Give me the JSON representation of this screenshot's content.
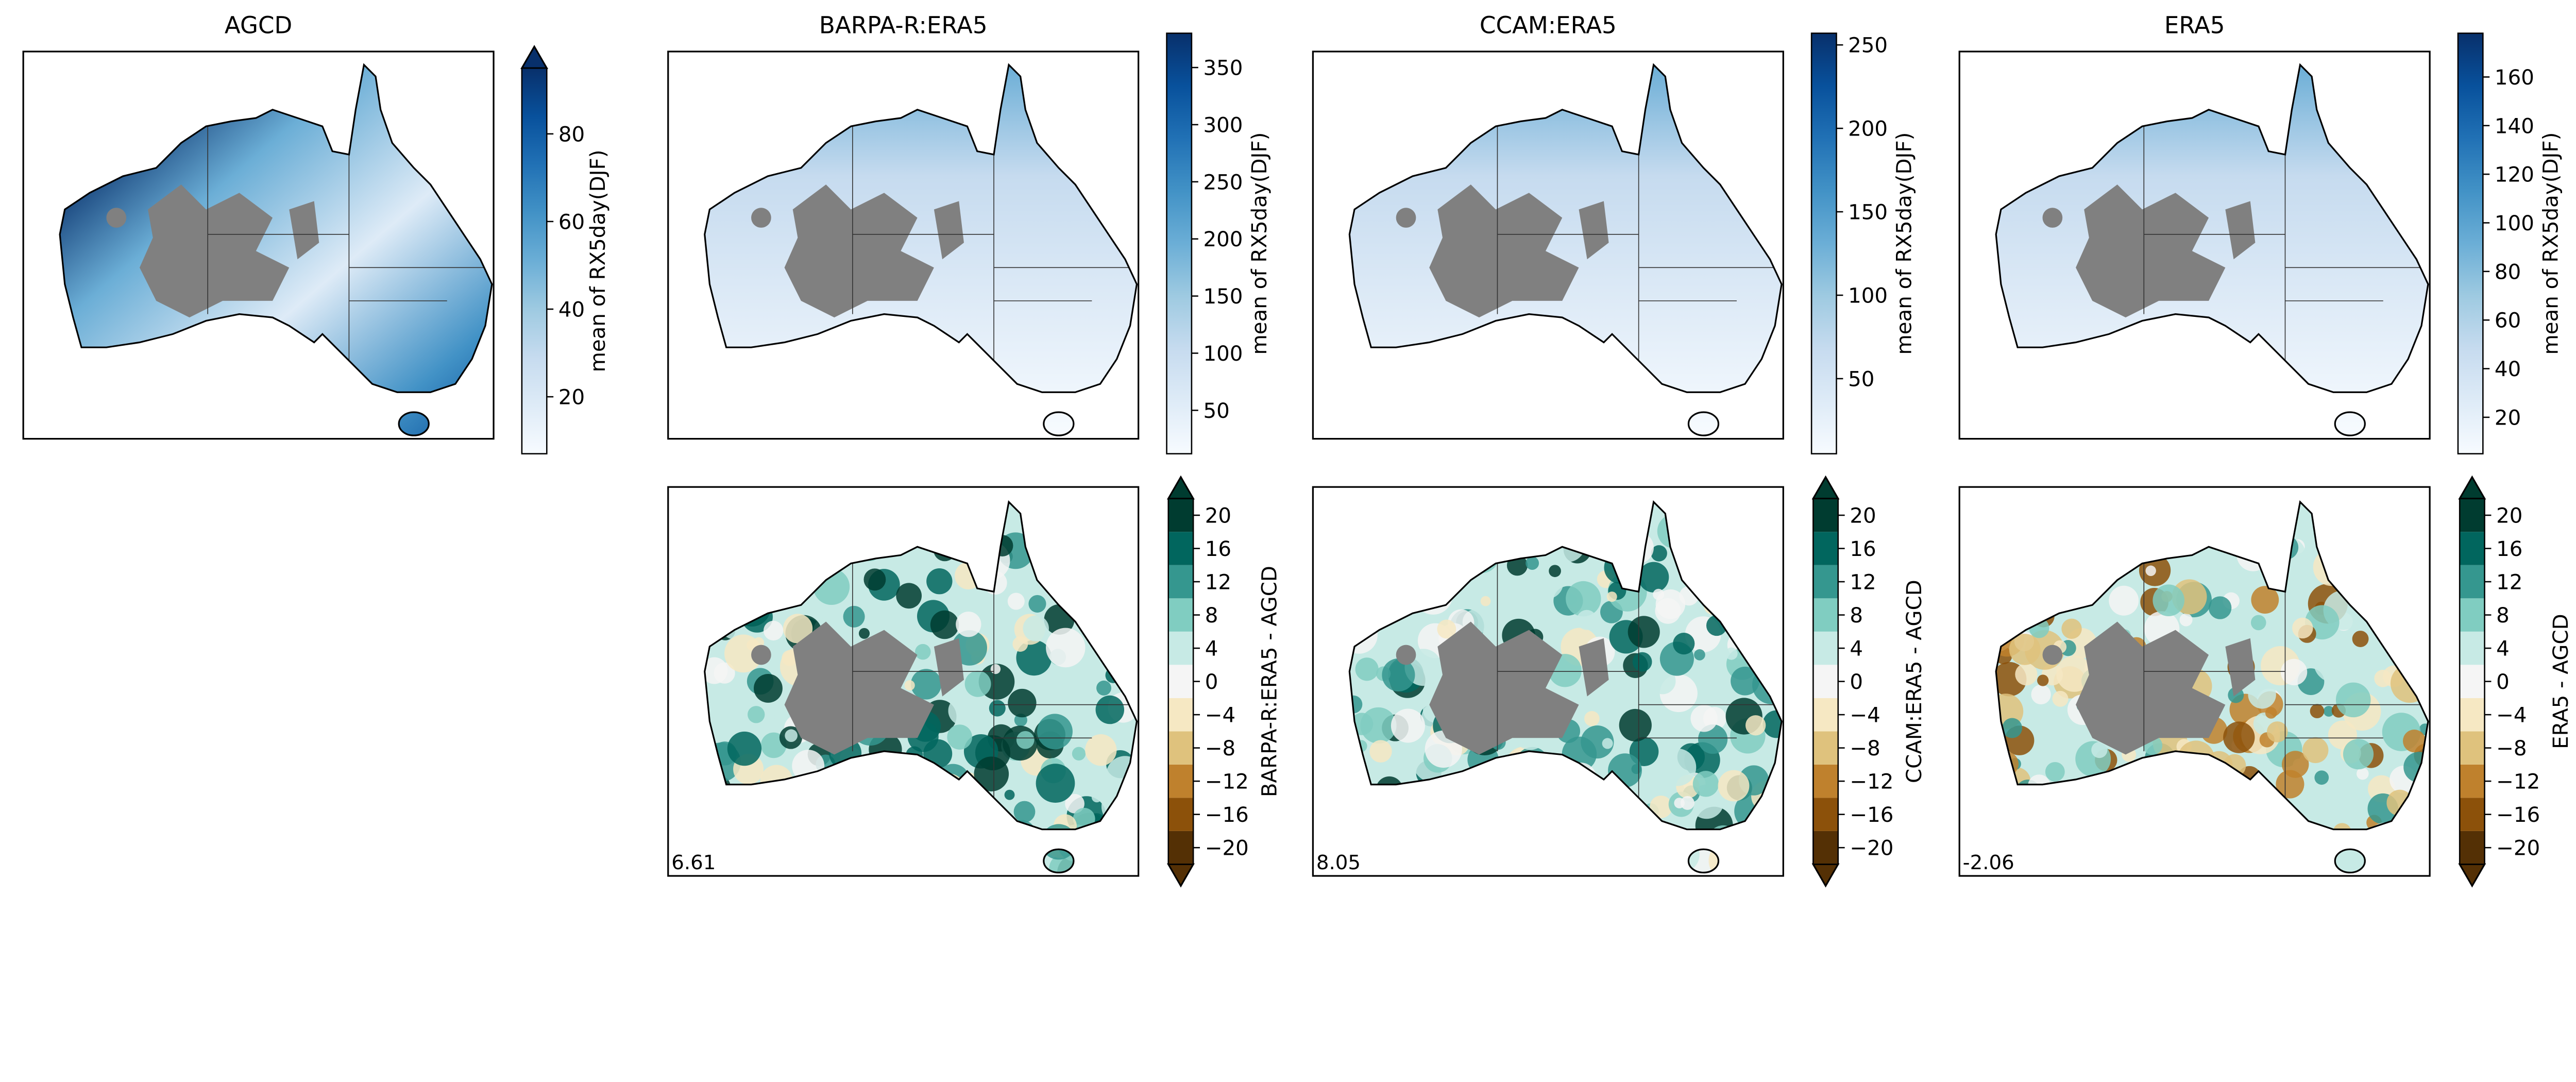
{
  "chart_data": [
    {
      "type": "heatmap",
      "title": "AGCD",
      "colormap": "Blues",
      "cbar_label": "mean of RX5day(DJF)",
      "range": [
        7,
        95
      ],
      "ticks": [
        20,
        40,
        60,
        80
      ],
      "extend": "max",
      "row": 1,
      "col": 1
    },
    {
      "type": "heatmap",
      "title": "BARPA-R:ERA5",
      "colormap": "Blues",
      "cbar_label": "mean of RX5day(DJF)",
      "range": [
        12,
        380
      ],
      "ticks": [
        50,
        100,
        150,
        200,
        250,
        300,
        350
      ],
      "extend": "neither",
      "row": 1,
      "col": 2
    },
    {
      "type": "heatmap",
      "title": "CCAM:ERA5",
      "colormap": "Blues",
      "cbar_label": "mean of RX5day(DJF)",
      "range": [
        5,
        257
      ],
      "ticks": [
        50,
        100,
        150,
        200,
        250
      ],
      "extend": "neither",
      "row": 1,
      "col": 3
    },
    {
      "type": "heatmap",
      "title": "ERA5",
      "colormap": "Blues",
      "cbar_label": "mean of RX5day(DJF)",
      "range": [
        5,
        178
      ],
      "ticks": [
        20,
        40,
        60,
        80,
        100,
        120,
        140,
        160
      ],
      "extend": "neither",
      "row": 1,
      "col": 4
    },
    {
      "type": "heatmap",
      "title": "",
      "colormap": "BrBG",
      "cbar_label": "BARPA-R:ERA5 - AGCD",
      "range": [
        -22,
        22
      ],
      "ticks": [
        -20,
        -16,
        -12,
        -8,
        -4,
        0,
        4,
        8,
        12,
        16,
        20
      ],
      "extend": "both",
      "annotation": "6.61",
      "row": 2,
      "col": 2
    },
    {
      "type": "heatmap",
      "title": "",
      "colormap": "BrBG",
      "cbar_label": "CCAM:ERA5 - AGCD",
      "range": [
        -22,
        22
      ],
      "ticks": [
        -20,
        -16,
        -12,
        -8,
        -4,
        0,
        4,
        8,
        12,
        16,
        20
      ],
      "extend": "both",
      "annotation": "8.05",
      "row": 2,
      "col": 3
    },
    {
      "type": "heatmap",
      "title": "",
      "colormap": "BrBG",
      "cbar_label": "ERA5 - AGCD",
      "range": [
        -22,
        22
      ],
      "ticks": [
        -20,
        -16,
        -12,
        -8,
        -4,
        0,
        4,
        8,
        12,
        16,
        20
      ],
      "extend": "both",
      "annotation": "-2.06",
      "row": 2,
      "col": 4
    }
  ],
  "colors": {
    "blues": [
      "#f7fbff",
      "#deebf7",
      "#c6dbef",
      "#9ecae1",
      "#6baed6",
      "#4292c6",
      "#2171b5",
      "#08519c",
      "#08306b"
    ],
    "brbg": [
      "#543005",
      "#8c510a",
      "#bf812d",
      "#dfc27d",
      "#f6e8c3",
      "#f5f5f5",
      "#c7eae5",
      "#80cdc1",
      "#35978f",
      "#01665e",
      "#003c30"
    ],
    "mask": "#808080"
  }
}
